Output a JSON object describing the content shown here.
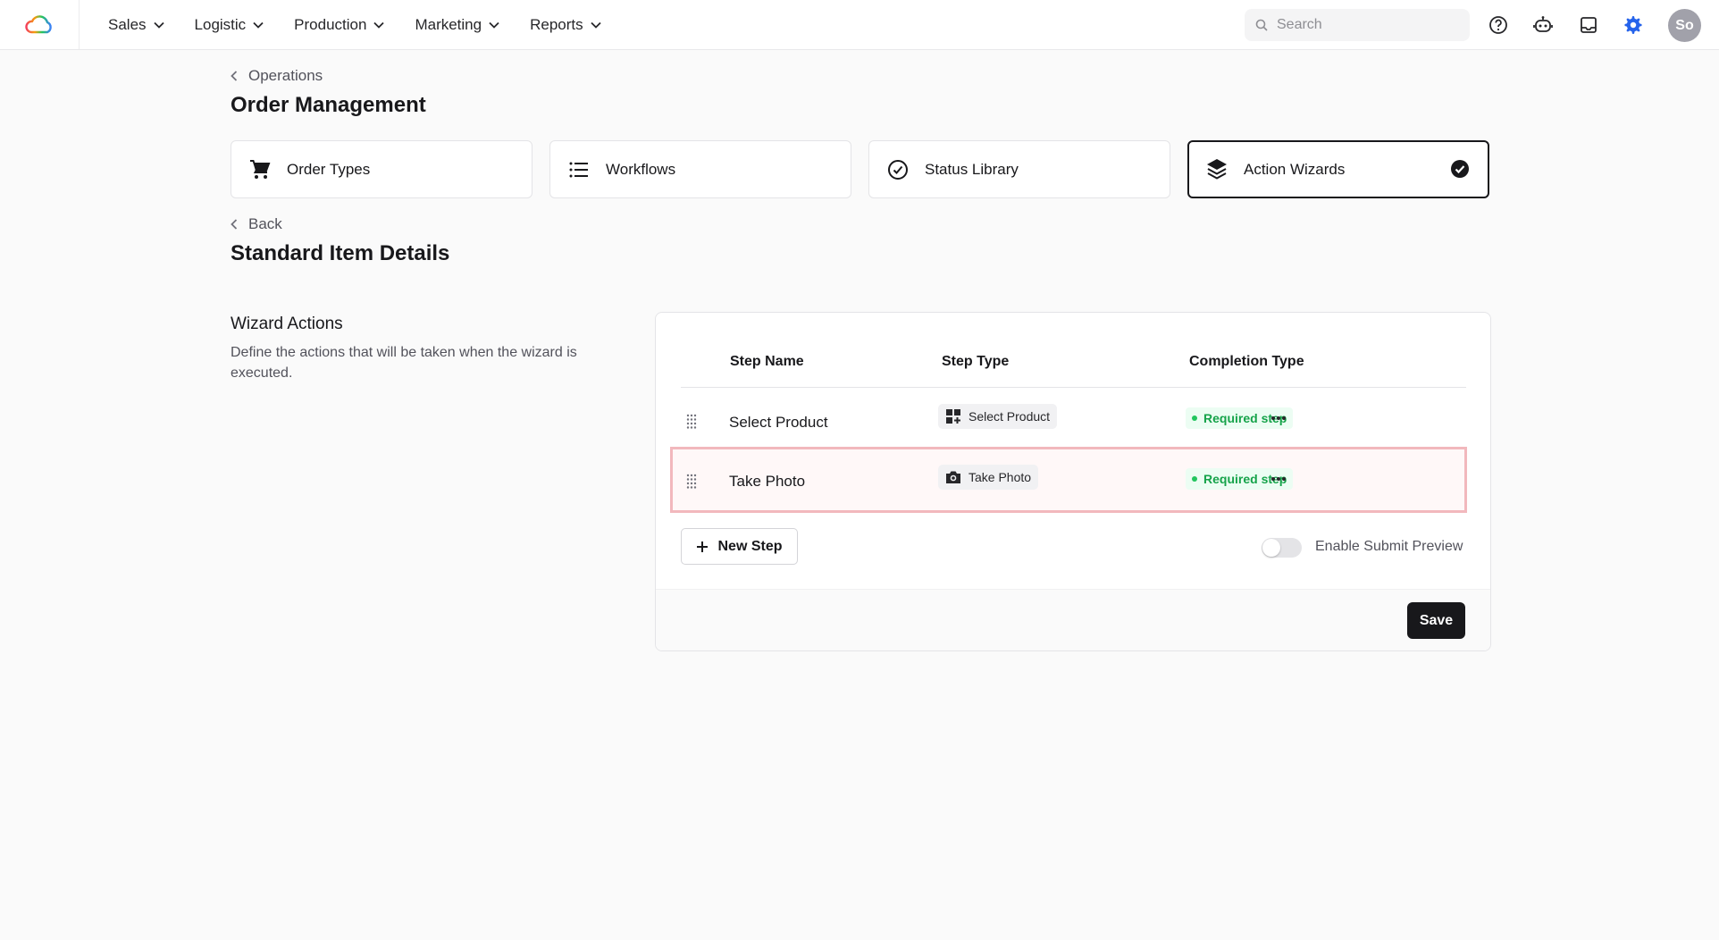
{
  "nav": {
    "items": [
      {
        "label": "Sales"
      },
      {
        "label": "Logistic"
      },
      {
        "label": "Production"
      },
      {
        "label": "Marketing"
      },
      {
        "label": "Reports"
      }
    ],
    "search_placeholder": "Search",
    "avatar_initials": "So",
    "icons": [
      "help-icon",
      "robot-icon",
      "inbox-icon",
      "gear-icon"
    ],
    "accent_color": "#2563eb"
  },
  "breadcrumb": {
    "parent": "Operations"
  },
  "page": {
    "title": "Order Management"
  },
  "tabs": [
    {
      "label": "Order Types",
      "icon": "cart-icon",
      "active": false
    },
    {
      "label": "Workflows",
      "icon": "list-icon",
      "active": false
    },
    {
      "label": "Status Library",
      "icon": "check-circle-icon",
      "active": false
    },
    {
      "label": "Action Wizards",
      "icon": "layers-icon",
      "active": true
    }
  ],
  "sub": {
    "back_label": "Back",
    "title": "Standard Item Details"
  },
  "wizard": {
    "title": "Wizard Actions",
    "description": "Define the actions that will be taken when the wizard is executed.",
    "columns": {
      "step_name": "Step Name",
      "step_type": "Step Type",
      "completion_type": "Completion Type"
    },
    "rows": [
      {
        "name": "Select Product",
        "type": "Select Product",
        "type_icon": "grid-plus-icon",
        "completion": "Required step"
      },
      {
        "name": "Take Photo",
        "type": "Take Photo",
        "type_icon": "camera-icon",
        "completion": "Required step"
      }
    ],
    "new_step_label": "New Step",
    "toggle_label": "Enable Submit Preview",
    "toggle_on": false,
    "save_label": "Save"
  }
}
